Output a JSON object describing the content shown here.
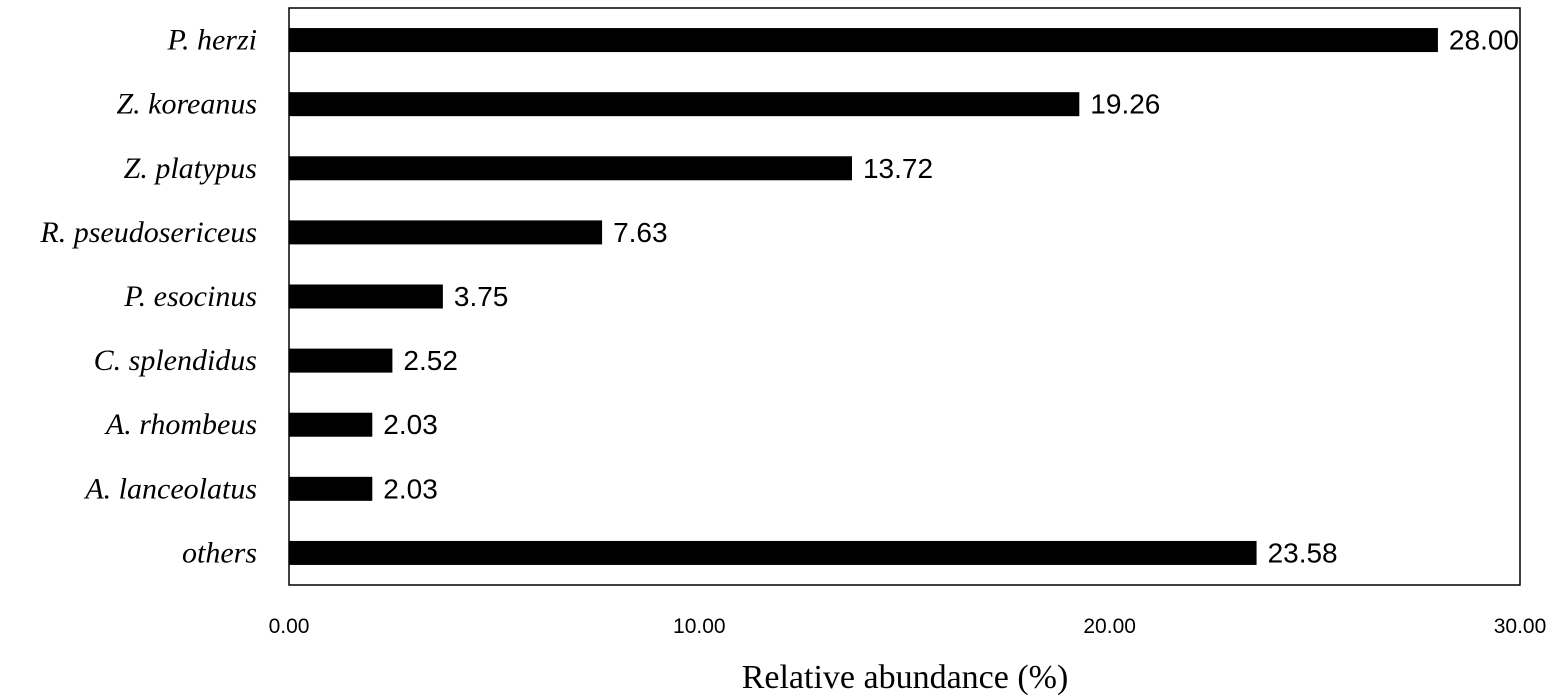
{
  "chart_data": {
    "type": "bar",
    "orientation": "horizontal",
    "categories": [
      "P. herzi",
      "Z. koreanus",
      "Z. platypus",
      "R. pseudosericeus",
      "P. esocinus",
      "C. splendidus",
      "A. rhombeus",
      "A. lanceolatus",
      "others"
    ],
    "values": [
      28.0,
      19.26,
      13.72,
      7.63,
      3.75,
      2.52,
      2.03,
      2.03,
      23.58
    ],
    "value_labels": [
      "28.00",
      "19.26",
      "13.72",
      "7.63",
      "3.75",
      "2.52",
      "2.03",
      "2.03",
      "23.58"
    ],
    "title": "",
    "xlabel": "Relative abundance  (%)",
    "ylabel": "",
    "xlim": [
      0,
      30
    ],
    "x_ticks": [
      0,
      10,
      20,
      30
    ],
    "x_tick_labels": [
      "0.00",
      "10.00",
      "20.00",
      "30.00"
    ],
    "grid": false,
    "bar_color": "#000000"
  }
}
